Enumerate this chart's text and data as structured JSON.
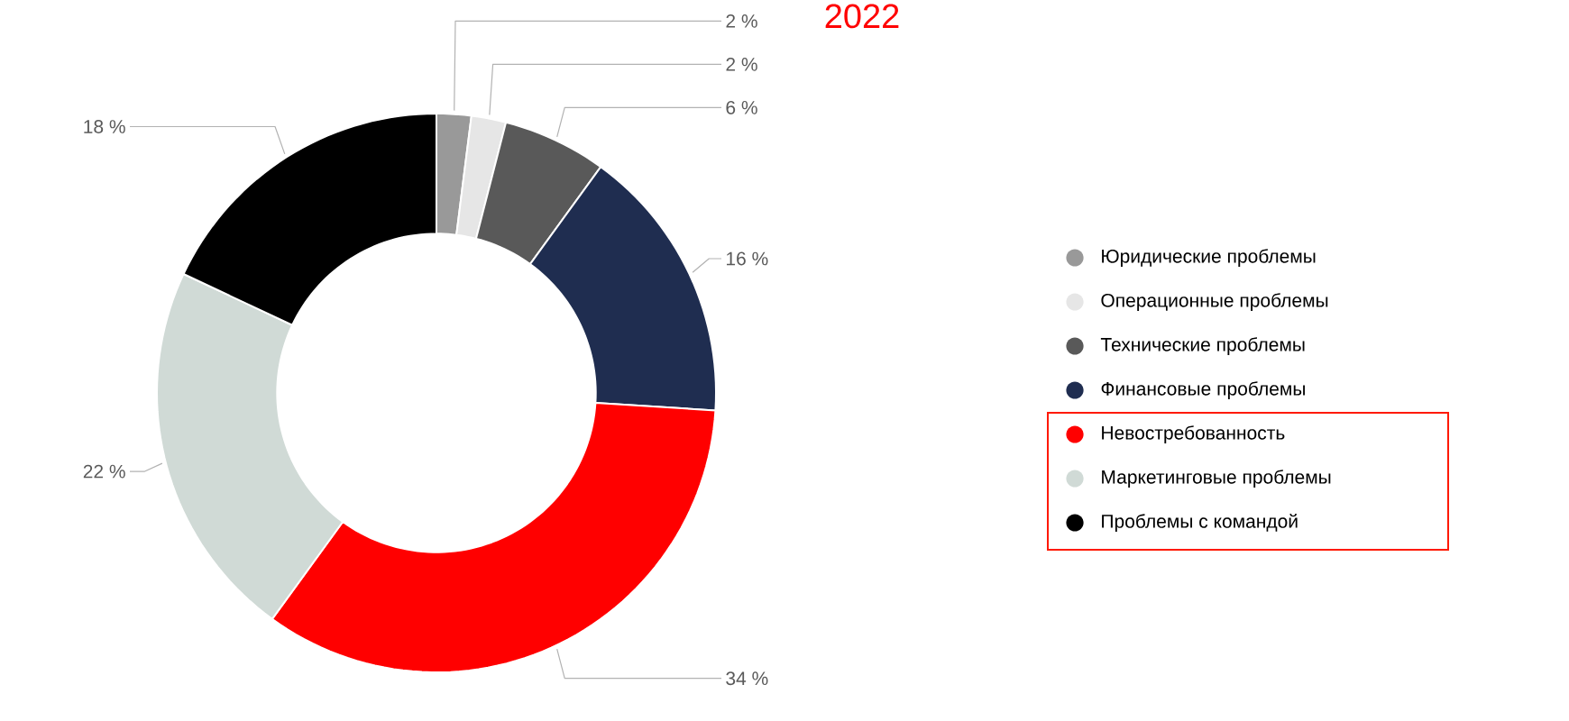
{
  "chart_data": {
    "type": "donut",
    "title": "2022",
    "categories": [
      "Юридические проблемы",
      "Операционные проблемы",
      "Технические проблемы",
      "Финансовые проблемы",
      "Невостребованность",
      "Маркетинговые проблемы",
      "Проблемы с командой"
    ],
    "values": [
      2,
      2,
      6,
      16,
      34,
      22,
      18
    ],
    "value_labels": [
      "2 %",
      "2 %",
      "6 %",
      "16 %",
      "34 %",
      "22 %",
      "18 %"
    ],
    "colors": [
      "#999999",
      "#e6e6e6",
      "#595959",
      "#1f2d50",
      "#ff0000",
      "#d0dad6",
      "#000000"
    ],
    "legend": "right"
  }
}
